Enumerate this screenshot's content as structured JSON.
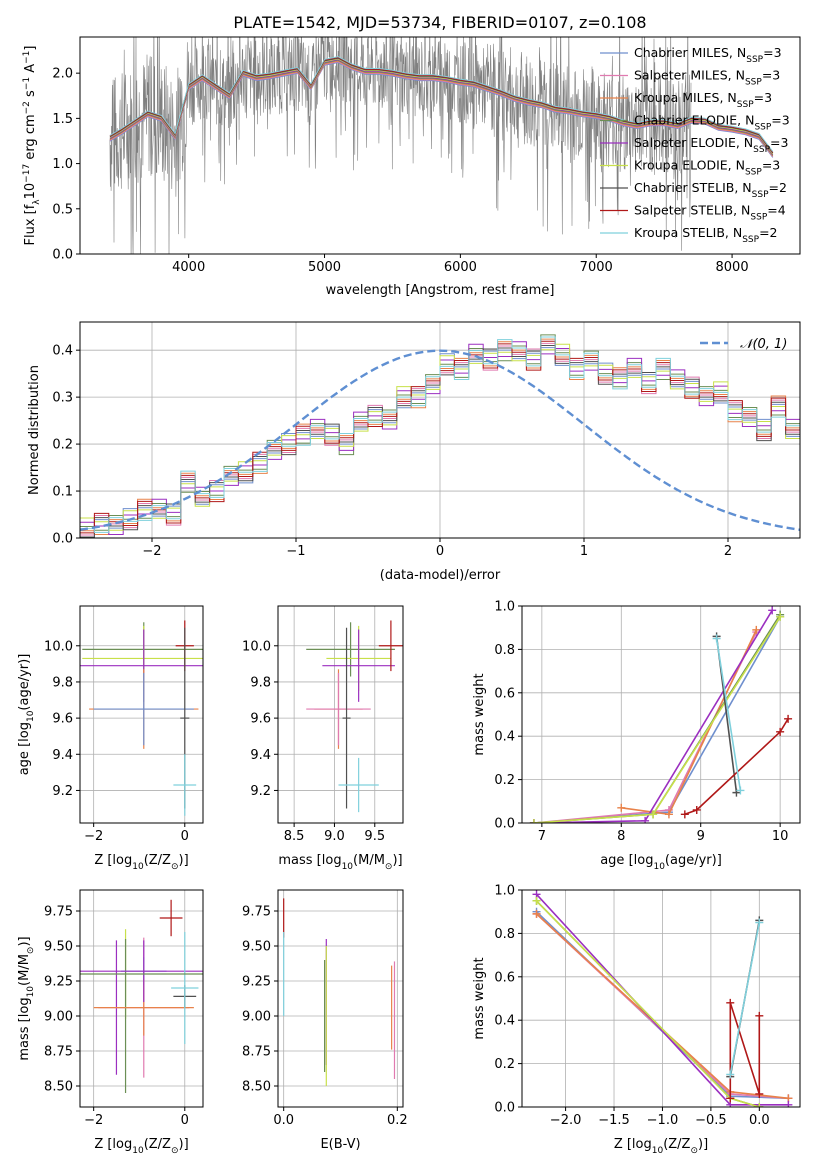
{
  "figure_title": "PLATE=1542, MJD=53734, FIBERID=0107, z=0.108",
  "series": [
    {
      "key": "chab_miles",
      "label": "Chabrier MILES, N",
      "sub": "SSP",
      "n": "=3",
      "color": "#6f8fce"
    },
    {
      "key": "salp_miles",
      "label": "Salpeter MILES, N",
      "sub": "SSP",
      "n": "=3",
      "color": "#e07ab0"
    },
    {
      "key": "krou_miles",
      "label": "Kroupa MILES, N",
      "sub": "SSP",
      "n": "=3",
      "color": "#e8824a"
    },
    {
      "key": "chab_elodie",
      "label": "Chabrier ELODIE, N",
      "sub": "SSP",
      "n": "=3",
      "color": "#6b8f55"
    },
    {
      "key": "salp_elodie",
      "label": "Salpeter ELODIE, N",
      "sub": "SSP",
      "n": "=3",
      "color": "#9b2fc0"
    },
    {
      "key": "krou_elodie",
      "label": "Kroupa ELODIE, N",
      "sub": "SSP",
      "n": "=3",
      "color": "#c8e04a"
    },
    {
      "key": "chab_stelib",
      "label": "Chabrier STELIB, N",
      "sub": "SSP",
      "n": "=2",
      "color": "#505050"
    },
    {
      "key": "salp_stelib",
      "label": "Salpeter STELIB, N",
      "sub": "SSP",
      "n": "=4",
      "color": "#b01818"
    },
    {
      "key": "krou_stelib",
      "label": "Kroupa STELIB, N",
      "sub": "SSP",
      "n": "=2",
      "color": "#7fd0dc"
    }
  ],
  "chart_data": [
    {
      "id": "spectrum",
      "type": "line",
      "xlabel": "wavelength [Angstrom, rest frame]",
      "ylabel_parts": [
        "Flux [f",
        "λ",
        "10",
        "−17",
        " erg cm",
        "−2",
        " s",
        "−1",
        " A",
        "−1",
        "]"
      ],
      "xlim": [
        3200,
        8500
      ],
      "ylim": [
        0,
        2.4
      ],
      "xticks": [
        4000,
        5000,
        6000,
        7000,
        8000
      ],
      "yticks": [
        0.0,
        0.5,
        1.0,
        1.5,
        2.0
      ],
      "data_color": "#808080",
      "model_continuum": {
        "x": [
          3420,
          3500,
          3600,
          3700,
          3800,
          3900,
          4000,
          4100,
          4200,
          4300,
          4400,
          4500,
          4600,
          4700,
          4800,
          4900,
          5000,
          5100,
          5200,
          5300,
          5400,
          5500,
          5600,
          5700,
          5800,
          5900,
          6000,
          6100,
          6200,
          6300,
          6400,
          6500,
          6600,
          6700,
          6800,
          6900,
          7000,
          7100,
          7200,
          7300,
          7400,
          7500,
          7600,
          7700,
          7800,
          7900,
          8000,
          8100,
          8200,
          8300
        ],
        "y": [
          1.28,
          1.35,
          1.45,
          1.55,
          1.5,
          1.3,
          1.85,
          1.95,
          1.85,
          1.75,
          2.0,
          1.95,
          1.97,
          2.0,
          2.03,
          1.85,
          2.12,
          2.15,
          2.07,
          2.02,
          2.02,
          2.0,
          1.97,
          1.95,
          1.95,
          1.93,
          1.9,
          1.88,
          1.83,
          1.78,
          1.72,
          1.68,
          1.65,
          1.6,
          1.58,
          1.55,
          1.53,
          1.5,
          1.45,
          1.42,
          1.45,
          1.45,
          1.42,
          1.48,
          1.47,
          1.4,
          1.38,
          1.35,
          1.3,
          1.1
        ]
      }
    },
    {
      "id": "residuals",
      "type": "step",
      "xlabel": "(data-model)/error",
      "ylabel": "Normed distribution",
      "xlim": [
        -2.5,
        2.5
      ],
      "ylim": [
        0,
        0.46
      ],
      "xticks": [
        -2,
        -1,
        0,
        1,
        2
      ],
      "yticks": [
        0.0,
        0.1,
        0.2,
        0.3,
        0.4
      ],
      "bins": {
        "start": -2.5,
        "width": 0.1
      },
      "counts": [
        0.02,
        0.03,
        0.03,
        0.04,
        0.06,
        0.06,
        0.05,
        0.12,
        0.09,
        0.1,
        0.13,
        0.14,
        0.16,
        0.19,
        0.2,
        0.22,
        0.23,
        0.22,
        0.2,
        0.25,
        0.26,
        0.25,
        0.3,
        0.3,
        0.33,
        0.37,
        0.36,
        0.39,
        0.38,
        0.4,
        0.4,
        0.38,
        0.41,
        0.39,
        0.36,
        0.38,
        0.35,
        0.34,
        0.36,
        0.33,
        0.36,
        0.34,
        0.32,
        0.3,
        0.31,
        0.27,
        0.26,
        0.23,
        0.28,
        0.23,
        0.21,
        0.2,
        0.19,
        0.16,
        0.14,
        0.13,
        0.13,
        0.11,
        0.1,
        0.09,
        0.08,
        0.07,
        0.06,
        0.06,
        0.05,
        0.04,
        0.04,
        0.03,
        0.03,
        0.03
      ],
      "normal": {
        "label": "𝒩(0, 1)",
        "color": "#5f8fd2"
      }
    },
    {
      "id": "age_vs_z",
      "type": "errorbar",
      "xlabel_parts": [
        "Z [log",
        "10",
        "(Z/Z",
        "⊙",
        ")]"
      ],
      "ylabel_parts": [
        "age  [log",
        "10",
        "(age/yr)]"
      ],
      "xlim": [
        -2.3,
        0.4
      ],
      "ylim": [
        9.02,
        10.22
      ],
      "xticks": [
        -2,
        0
      ],
      "yticks": [
        9.2,
        9.4,
        9.6,
        9.8,
        10.0
      ],
      "points": [
        {
          "s": "chab_elodie",
          "x": -0.9,
          "y": 9.98,
          "xerr": 1.35,
          "yerr": 0.15
        },
        {
          "s": "krou_elodie",
          "x": -0.9,
          "y": 9.93,
          "xerr": 1.35,
          "yerr": 0.18
        },
        {
          "s": "salp_elodie",
          "x": -0.9,
          "y": 9.89,
          "xerr": 1.4,
          "yerr": 0.2
        },
        {
          "s": "salp_stelib",
          "x": 0.0,
          "y": 10.0,
          "xerr": 0.2,
          "yerr": 0.14
        },
        {
          "s": "krou_miles",
          "x": -0.9,
          "y": 9.65,
          "xerr": 1.2,
          "yerr": 0.22
        },
        {
          "s": "chab_miles",
          "x": -0.9,
          "y": 9.65,
          "xerr": 1.1,
          "yerr": 0.2
        },
        {
          "s": "chab_stelib",
          "x": 0.0,
          "y": 9.6,
          "xerr": 0.1,
          "yerr": 0.5
        },
        {
          "s": "krou_stelib",
          "x": 0.0,
          "y": 9.23,
          "xerr": 0.25,
          "yerr": 0.17
        }
      ]
    },
    {
      "id": "age_vs_mass",
      "type": "errorbar",
      "xlabel_parts": [
        "mass [log",
        "10",
        "(M/M",
        "⊙",
        ")]"
      ],
      "xlim": [
        8.3,
        9.85
      ],
      "ylim": [
        9.02,
        10.22
      ],
      "xticks": [
        8.5,
        9.0,
        9.5
      ],
      "yticks": [
        9.2,
        9.4,
        9.6,
        9.8,
        10.0
      ],
      "points": [
        {
          "s": "chab_elodie",
          "x": 9.2,
          "y": 9.98,
          "xerr": 0.55,
          "yerr": 0.15
        },
        {
          "s": "krou_elodie",
          "x": 9.3,
          "y": 9.93,
          "xerr": 0.4,
          "yerr": 0.18
        },
        {
          "s": "salp_elodie",
          "x": 9.3,
          "y": 9.89,
          "xerr": 0.45,
          "yerr": 0.2
        },
        {
          "s": "salp_stelib",
          "x": 9.7,
          "y": 10.0,
          "xerr": 0.15,
          "yerr": 0.14
        },
        {
          "s": "krou_miles",
          "x": 9.05,
          "y": 9.65,
          "xerr": 0.3,
          "yerr": 0.22
        },
        {
          "s": "salp_miles",
          "x": 9.05,
          "y": 9.65,
          "xerr": 0.4,
          "yerr": 0.2
        },
        {
          "s": "chab_stelib",
          "x": 9.15,
          "y": 9.6,
          "xerr": 0.05,
          "yerr": 0.5
        },
        {
          "s": "krou_stelib",
          "x": 9.3,
          "y": 9.23,
          "xerr": 0.25,
          "yerr": 0.15
        }
      ]
    },
    {
      "id": "weight_vs_age",
      "type": "line",
      "xlabel_parts": [
        "age  [log",
        "10",
        "(age/yr)]"
      ],
      "ylabel": "mass weight",
      "xlim": [
        6.75,
        10.25
      ],
      "ylim": [
        0,
        1.0
      ],
      "xticks": [
        7,
        8,
        9,
        10
      ],
      "yticks": [
        0.0,
        0.2,
        0.4,
        0.6,
        0.8,
        1.0
      ],
      "lines": [
        {
          "s": "chab_miles",
          "x": [
            6.9,
            8.6,
            10.0
          ],
          "y": [
            0.0,
            0.05,
            0.95
          ]
        },
        {
          "s": "salp_miles",
          "x": [
            6.9,
            8.6,
            9.7
          ],
          "y": [
            0.0,
            0.06,
            0.88
          ]
        },
        {
          "s": "krou_miles",
          "x": [
            8.0,
            8.6,
            9.7
          ],
          "y": [
            0.07,
            0.04,
            0.89
          ]
        },
        {
          "s": "chab_elodie",
          "x": [
            6.9,
            8.4,
            10.0
          ],
          "y": [
            0.0,
            0.04,
            0.96
          ]
        },
        {
          "s": "salp_elodie",
          "x": [
            6.9,
            8.3,
            9.9
          ],
          "y": [
            0.0,
            0.01,
            0.98
          ]
        },
        {
          "s": "krou_elodie",
          "x": [
            6.9,
            8.4,
            10.0
          ],
          "y": [
            0.0,
            0.04,
            0.95
          ]
        },
        {
          "s": "chab_stelib",
          "x": [
            9.2,
            9.45
          ],
          "y": [
            0.86,
            0.14
          ]
        },
        {
          "s": "salp_stelib",
          "x": [
            8.8,
            8.95,
            10.0,
            10.1
          ],
          "y": [
            0.04,
            0.06,
            0.42,
            0.48
          ]
        },
        {
          "s": "krou_stelib",
          "x": [
            9.2,
            9.5
          ],
          "y": [
            0.85,
            0.15
          ]
        }
      ]
    },
    {
      "id": "mass_vs_z",
      "type": "errorbar",
      "xlabel_parts": [
        "Z [log",
        "10",
        "(Z/Z",
        "⊙",
        ")]"
      ],
      "ylabel_parts": [
        "mass [log",
        "10",
        "(M/M",
        "⊙",
        ")]"
      ],
      "xlim": [
        -2.3,
        0.4
      ],
      "ylim": [
        8.35,
        9.9
      ],
      "xticks": [
        -2,
        0
      ],
      "yticks": [
        8.5,
        8.75,
        9.0,
        9.25,
        9.5,
        9.75
      ],
      "points": [
        {
          "s": "salp_elodie",
          "x": -1.5,
          "y": 9.06,
          "xerr": 0.0,
          "yerr": 0.48
        },
        {
          "s": "krou_elodie",
          "x": -1.3,
          "y": 9.3,
          "xerr": 0.0,
          "yerr": 0.32
        },
        {
          "s": "chab_elodie",
          "x": -1.3,
          "y": 9.0,
          "xerr": 0.0,
          "yerr": 0.55
        },
        {
          "s": "salp_miles",
          "x": -0.9,
          "y": 9.06,
          "xerr": 1.0,
          "yerr": 0.5
        },
        {
          "s": "chab_miles",
          "x": -0.9,
          "y": 9.32,
          "xerr": 0.5,
          "yerr": 0.1
        },
        {
          "s": "krou_miles",
          "x": -0.9,
          "y": 9.06,
          "xerr": 1.1,
          "yerr": 0.2
        },
        {
          "s": "salp_elodie",
          "x": -0.9,
          "y": 9.32,
          "xerr": 1.9,
          "yerr": 0.22
        },
        {
          "s": "chab_stelib",
          "x": 0.0,
          "y": 9.14,
          "xerr": 0.25,
          "yerr": 0.08
        },
        {
          "s": "salp_stelib",
          "x": -0.3,
          "y": 9.7,
          "xerr": 0.25,
          "yerr": 0.13
        },
        {
          "s": "krou_stelib",
          "x": 0.0,
          "y": 9.2,
          "xerr": 0.3,
          "yerr": 0.4
        },
        {
          "s": "chab_elodie",
          "x": -0.9,
          "y": 9.3,
          "xerr": 1.9,
          "yerr": 0.0
        }
      ]
    },
    {
      "id": "mass_vs_ebv",
      "type": "errorbar",
      "xlabel": "E(B-V)",
      "xlim": [
        -0.01,
        0.21
      ],
      "ylim": [
        8.35,
        9.9
      ],
      "xticks": [
        0.0,
        0.2
      ],
      "yticks": [
        8.5,
        8.75,
        9.0,
        9.25,
        9.5,
        9.75
      ],
      "points": [
        {
          "s": "salp_stelib",
          "x": 0.0,
          "y": 9.7,
          "xerr": 0.0,
          "yerr": 0.14
        },
        {
          "s": "krou_stelib",
          "x": 0.0,
          "y": 9.3,
          "xerr": 0.0,
          "yerr": 0.3
        },
        {
          "s": "salp_elodie",
          "x": 0.075,
          "y": 9.1,
          "xerr": 0.0,
          "yerr": 0.45
        },
        {
          "s": "krou_elodie",
          "x": 0.075,
          "y": 9.0,
          "xerr": 0.0,
          "yerr": 0.5
        },
        {
          "s": "chab_elodie",
          "x": 0.072,
          "y": 9.0,
          "xerr": 0.0,
          "yerr": 0.4
        },
        {
          "s": "krou_miles",
          "x": 0.19,
          "y": 9.06,
          "xerr": 0.0,
          "yerr": 0.3
        },
        {
          "s": "salp_miles",
          "x": 0.195,
          "y": 8.97,
          "xerr": 0.0,
          "yerr": 0.42
        }
      ]
    },
    {
      "id": "weight_vs_z",
      "type": "line",
      "xlabel_parts": [
        "Z [log",
        "10",
        "(Z/Z",
        "⊙",
        ")]"
      ],
      "ylabel": "mass weight",
      "xlim": [
        -2.45,
        0.42
      ],
      "ylim": [
        0,
        1.0
      ],
      "xticks": [
        -2.0,
        -1.5,
        -1.0,
        -0.5,
        0.0
      ],
      "yticks": [
        0.0,
        0.2,
        0.4,
        0.6,
        0.8,
        1.0
      ],
      "lines": [
        {
          "s": "chab_miles",
          "x": [
            -2.3,
            -0.3,
            0.3
          ],
          "y": [
            0.9,
            0.05,
            0.04
          ]
        },
        {
          "s": "salp_miles",
          "x": [
            -2.3,
            -0.3,
            0.3
          ],
          "y": [
            0.89,
            0.06,
            0.04
          ]
        },
        {
          "s": "krou_miles",
          "x": [
            -2.3,
            -0.3,
            0.3
          ],
          "y": [
            0.89,
            0.07,
            0.04
          ]
        },
        {
          "s": "chab_elodie",
          "x": [
            -2.3,
            -0.3,
            0.0
          ],
          "y": [
            0.95,
            0.04,
            0.0
          ]
        },
        {
          "s": "salp_elodie",
          "x": [
            -2.3,
            -0.3,
            0.3
          ],
          "y": [
            0.98,
            0.01,
            0.01
          ]
        },
        {
          "s": "krou_elodie",
          "x": [
            -2.3,
            -0.3,
            0.0
          ],
          "y": [
            0.95,
            0.04,
            0.0
          ]
        },
        {
          "s": "chab_stelib",
          "x": [
            -0.3,
            0.0
          ],
          "y": [
            0.14,
            0.86
          ]
        },
        {
          "s": "salp_stelib",
          "x": [
            -0.3,
            -0.3,
            0.0,
            0.0
          ],
          "y": [
            0.04,
            0.48,
            0.06,
            0.42
          ]
        },
        {
          "s": "krou_stelib",
          "x": [
            -0.3,
            0.0
          ],
          "y": [
            0.15,
            0.85
          ]
        }
      ]
    }
  ]
}
